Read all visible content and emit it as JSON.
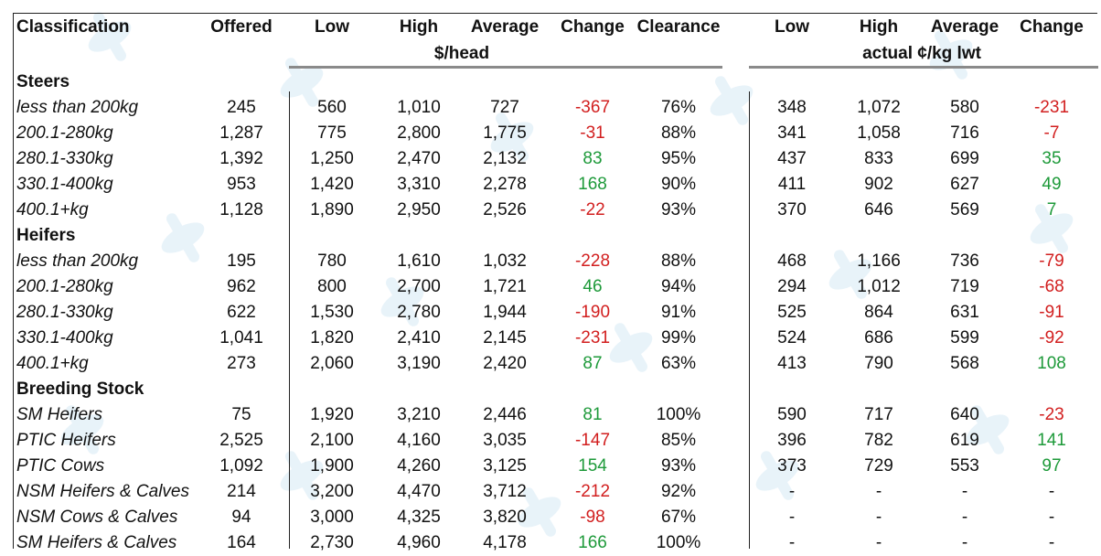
{
  "header": {
    "classification": "Classification",
    "offered": "Offered",
    "low": "Low",
    "high": "High",
    "average": "Average",
    "change": "Change",
    "clearance": "Clearance",
    "low2": "Low",
    "high2": "High",
    "average2": "Average",
    "change2": "Change",
    "unit_head": "$/head",
    "unit_kg": "actual ¢/kg lwt"
  },
  "colors": {
    "negative": "#d21f1f",
    "positive": "#1e9a3a"
  },
  "sections": [
    {
      "title": "Steers",
      "rows": [
        {
          "label": "less than 200kg",
          "offered": "245",
          "low": "560",
          "high": "1,010",
          "avg": "727",
          "change": "-367",
          "clearance": "76%",
          "low2": "348",
          "high2": "1,072",
          "avg2": "580",
          "change2": "-231"
        },
        {
          "label": "200.1-280kg",
          "offered": "1,287",
          "low": "775",
          "high": "2,800",
          "avg": "1,775",
          "change": "-31",
          "clearance": "88%",
          "low2": "341",
          "high2": "1,058",
          "avg2": "716",
          "change2": "-7"
        },
        {
          "label": "280.1-330kg",
          "offered": "1,392",
          "low": "1,250",
          "high": "2,470",
          "avg": "2,132",
          "change": "83",
          "clearance": "95%",
          "low2": "437",
          "high2": "833",
          "avg2": "699",
          "change2": "35"
        },
        {
          "label": "330.1-400kg",
          "offered": "953",
          "low": "1,420",
          "high": "3,310",
          "avg": "2,278",
          "change": "168",
          "clearance": "90%",
          "low2": "411",
          "high2": "902",
          "avg2": "627",
          "change2": "49"
        },
        {
          "label": "400.1+kg",
          "offered": "1,128",
          "low": "1,890",
          "high": "2,950",
          "avg": "2,526",
          "change": "-22",
          "clearance": "93%",
          "low2": "370",
          "high2": "646",
          "avg2": "569",
          "change2": "7"
        }
      ]
    },
    {
      "title": "Heifers",
      "rows": [
        {
          "label": "less than 200kg",
          "offered": "195",
          "low": "780",
          "high": "1,610",
          "avg": "1,032",
          "change": "-228",
          "clearance": "88%",
          "low2": "468",
          "high2": "1,166",
          "avg2": "736",
          "change2": "-79"
        },
        {
          "label": "200.1-280kg",
          "offered": "962",
          "low": "800",
          "high": "2,700",
          "avg": "1,721",
          "change": "46",
          "clearance": "94%",
          "low2": "294",
          "high2": "1,012",
          "avg2": "719",
          "change2": "-68"
        },
        {
          "label": "280.1-330kg",
          "offered": "622",
          "low": "1,530",
          "high": "2,780",
          "avg": "1,944",
          "change": "-190",
          "clearance": "91%",
          "low2": "525",
          "high2": "864",
          "avg2": "631",
          "change2": "-91"
        },
        {
          "label": "330.1-400kg",
          "offered": "1,041",
          "low": "1,820",
          "high": "2,410",
          "avg": "2,145",
          "change": "-231",
          "clearance": "99%",
          "low2": "524",
          "high2": "686",
          "avg2": "599",
          "change2": "-92"
        },
        {
          "label": "400.1+kg",
          "offered": "273",
          "low": "2,060",
          "high": "3,190",
          "avg": "2,420",
          "change": "87",
          "clearance": "63%",
          "low2": "413",
          "high2": "790",
          "avg2": "568",
          "change2": "108"
        }
      ]
    },
    {
      "title": "Breeding Stock",
      "rows": [
        {
          "label": "SM Heifers",
          "offered": "75",
          "low": "1,920",
          "high": "3,210",
          "avg": "2,446",
          "change": "81",
          "clearance": "100%",
          "low2": "590",
          "high2": "717",
          "avg2": "640",
          "change2": "-23"
        },
        {
          "label": "PTIC Heifers",
          "offered": "2,525",
          "low": "2,100",
          "high": "4,160",
          "avg": "3,035",
          "change": "-147",
          "clearance": "85%",
          "low2": "396",
          "high2": "782",
          "avg2": "619",
          "change2": "141"
        },
        {
          "label": "PTIC Cows",
          "offered": "1,092",
          "low": "1,900",
          "high": "4,260",
          "avg": "3,125",
          "change": "154",
          "clearance": "93%",
          "low2": "373",
          "high2": "729",
          "avg2": "553",
          "change2": "97"
        },
        {
          "label": "NSM Heifers & Calves",
          "offered": "214",
          "low": "3,200",
          "high": "4,470",
          "avg": "3,712",
          "change": "-212",
          "clearance": "92%",
          "low2": "-",
          "high2": "-",
          "avg2": "-",
          "change2": "-"
        },
        {
          "label": "NSM Cows & Calves",
          "offered": "94",
          "low": "3,000",
          "high": "4,325",
          "avg": "3,820",
          "change": "-98",
          "clearance": "67%",
          "low2": "-",
          "high2": "-",
          "avg2": "-",
          "change2": "-"
        },
        {
          "label": "SM Heifers & Calves",
          "offered": "164",
          "low": "2,730",
          "high": "4,960",
          "avg": "4,178",
          "change": "166",
          "clearance": "100%",
          "low2": "-",
          "high2": "-",
          "avg2": "-",
          "change2": "-"
        }
      ]
    }
  ]
}
